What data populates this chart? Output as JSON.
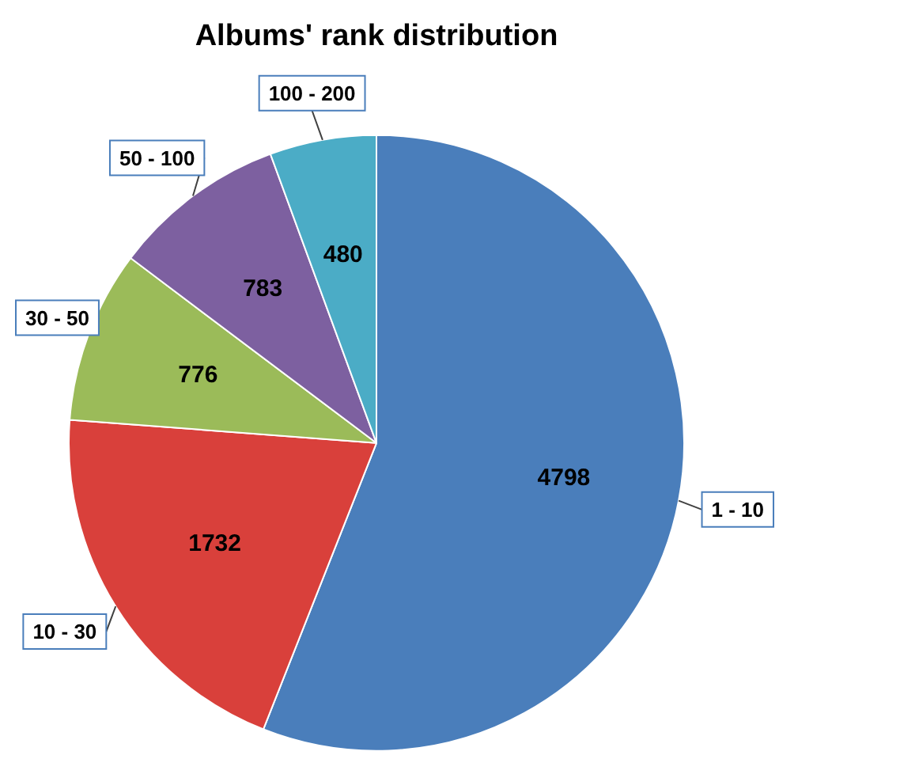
{
  "chart_data": {
    "type": "pie",
    "title": "Albums' rank distribution",
    "categories": [
      "1 - 10",
      "10 - 30",
      "30 - 50",
      "50 - 100",
      "100 - 200"
    ],
    "values": [
      4798,
      1732,
      776,
      783,
      480
    ],
    "colors": [
      "#4a7ebb",
      "#d9403b",
      "#9bbb59",
      "#7d60a0",
      "#4bacc6"
    ],
    "data_labels": true
  }
}
